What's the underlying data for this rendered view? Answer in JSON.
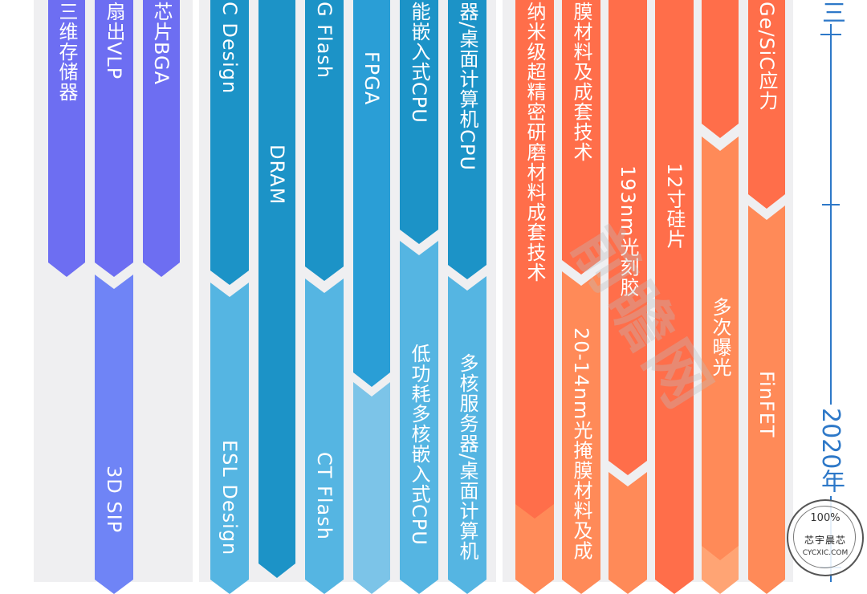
{
  "colors": {
    "panel": "#efeff1",
    "purple_dark": "#6d6ef2",
    "purple_light": "#6f84f6",
    "blue_dark": "#1c93c7",
    "blue_mid": "#2a9ed6",
    "blue_light": "#55b5e2",
    "blue_pale": "#7cc4e8",
    "orange_red": "#ff6e4a",
    "orange": "#ff8a58",
    "orange_light": "#ffa474",
    "axis": "#2d78c8"
  },
  "timeline": {
    "top_label": "三",
    "year_label": "2020年"
  },
  "columns": [
    {
      "id": "p1",
      "segments": [
        {
          "label": "三维存储器",
          "color": "purple_dark"
        }
      ]
    },
    {
      "id": "p2",
      "segments": [
        {
          "label": "扇出VLP",
          "color": "purple_dark"
        },
        {
          "label": "3D SIP",
          "color": "purple_light"
        }
      ]
    },
    {
      "id": "p3",
      "segments": [
        {
          "label": "芯片BGA",
          "color": "purple_dark"
        }
      ]
    },
    {
      "id": "b1",
      "segments": [
        {
          "label": "C Design",
          "color": "blue_dark"
        },
        {
          "label": "ESL Design",
          "color": "blue_light"
        }
      ]
    },
    {
      "id": "b2",
      "segments": [
        {
          "label": "DRAM",
          "color": "blue_dark"
        }
      ]
    },
    {
      "id": "b3",
      "segments": [
        {
          "label": "G Flash",
          "color": "blue_dark"
        },
        {
          "label": "CT Flash",
          "color": "blue_light"
        }
      ]
    },
    {
      "id": "b4",
      "segments": [
        {
          "label": "FPGA",
          "color": "blue_mid"
        },
        {
          "label": "",
          "color": "blue_pale"
        }
      ]
    },
    {
      "id": "b5",
      "segments": [
        {
          "label": "能嵌入式CPU",
          "color": "blue_dark"
        },
        {
          "label": "低功耗多核嵌入式CPU",
          "color": "blue_light"
        }
      ]
    },
    {
      "id": "b6",
      "segments": [
        {
          "label": "器/桌面计算机CPU",
          "color": "blue_dark"
        },
        {
          "label": "多核服务器/桌面计算机",
          "color": "blue_light"
        }
      ]
    },
    {
      "id": "o1",
      "segments": [
        {
          "label": "纳米级超精密研磨材料成套技术",
          "color": "orange_red"
        },
        {
          "label": "",
          "color": "orange"
        }
      ]
    },
    {
      "id": "o2",
      "segments": [
        {
          "label": "膜材料及成套技术",
          "color": "orange_red"
        },
        {
          "label": "20-14nm光掩膜材料及成",
          "color": "orange"
        }
      ]
    },
    {
      "id": "o3",
      "segments": [
        {
          "label": "193nm光刻胶",
          "color": "orange_red"
        },
        {
          "label": "",
          "color": "orange"
        }
      ]
    },
    {
      "id": "o4",
      "segments": [
        {
          "label": "12寸硅片",
          "color": "orange_red"
        }
      ]
    },
    {
      "id": "o5",
      "segments": [
        {
          "label": "",
          "color": "orange_red"
        },
        {
          "label": "多次曝光",
          "color": "orange"
        },
        {
          "label": "",
          "color": "orange_light"
        }
      ]
    },
    {
      "id": "o6",
      "segments": [
        {
          "label": "Ge/SiC应力",
          "color": "orange_red"
        },
        {
          "label": "FinFET",
          "color": "orange"
        }
      ]
    }
  ],
  "watermark": "前瞻网",
  "seal": {
    "percent": "100%",
    "name": "芯宇晨芯",
    "url": "CYCXIC.COM"
  }
}
